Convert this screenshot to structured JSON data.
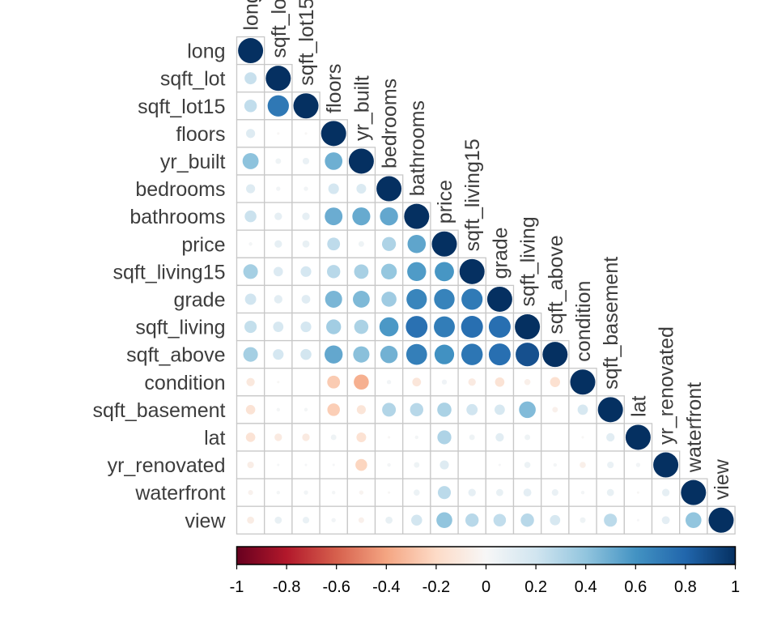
{
  "chart_data": {
    "type": "heatmap",
    "variables": [
      "long",
      "sqft_lot",
      "sqft_lot15",
      "floors",
      "yr_built",
      "bedrooms",
      "bathrooms",
      "price",
      "sqft_living15",
      "grade",
      "sqft_living",
      "sqft_above",
      "condition",
      "sqft_basement",
      "lat",
      "yr_renovated",
      "waterfront",
      "view"
    ],
    "lower_triangle_correlations": [
      [
        1.0
      ],
      [
        0.23,
        1.0
      ],
      [
        0.25,
        0.72,
        1.0
      ],
      [
        0.13,
        -0.01,
        -0.01,
        1.0
      ],
      [
        0.41,
        0.05,
        0.07,
        0.49,
        1.0
      ],
      [
        0.13,
        0.03,
        0.03,
        0.18,
        0.15,
        1.0
      ],
      [
        0.22,
        0.09,
        0.09,
        0.5,
        0.51,
        0.52,
        1.0
      ],
      [
        0.02,
        0.09,
        0.08,
        0.26,
        0.05,
        0.31,
        0.53,
        1.0
      ],
      [
        0.34,
        0.14,
        0.18,
        0.28,
        0.33,
        0.39,
        0.57,
        0.59,
        1.0
      ],
      [
        0.2,
        0.11,
        0.12,
        0.46,
        0.45,
        0.36,
        0.66,
        0.67,
        0.71,
        1.0
      ],
      [
        0.24,
        0.17,
        0.18,
        0.35,
        0.32,
        0.58,
        0.75,
        0.7,
        0.76,
        0.76,
        1.0
      ],
      [
        0.34,
        0.18,
        0.19,
        0.52,
        0.42,
        0.48,
        0.69,
        0.61,
        0.73,
        0.76,
        0.88,
        1.0
      ],
      [
        -0.11,
        -0.01,
        -0.0,
        -0.26,
        -0.36,
        0.03,
        -0.12,
        0.04,
        -0.09,
        -0.14,
        -0.06,
        -0.16,
        1.0
      ],
      [
        -0.14,
        0.02,
        0.02,
        -0.25,
        -0.13,
        0.3,
        0.28,
        0.32,
        0.2,
        0.17,
        0.44,
        -0.05,
        0.17,
        1.0
      ],
      [
        -0.14,
        -0.09,
        -0.09,
        0.05,
        -0.15,
        -0.01,
        0.02,
        0.31,
        0.05,
        0.11,
        0.05,
        0.0,
        -0.01,
        0.11,
        1.0
      ],
      [
        -0.07,
        0.01,
        0.01,
        0.01,
        -0.22,
        0.02,
        0.05,
        0.13,
        0.0,
        0.01,
        0.06,
        0.02,
        -0.06,
        0.07,
        0.03,
        1.0
      ],
      [
        -0.04,
        0.02,
        0.03,
        0.02,
        -0.03,
        -0.01,
        0.06,
        0.27,
        0.09,
        0.08,
        0.1,
        0.07,
        0.02,
        0.08,
        -0.01,
        0.09,
        1.0
      ],
      [
        -0.08,
        0.08,
        0.07,
        0.03,
        -0.05,
        0.08,
        0.19,
        0.4,
        0.28,
        0.25,
        0.28,
        0.17,
        0.05,
        0.27,
        0.01,
        0.1,
        0.4,
        1.0
      ]
    ],
    "colorbar": {
      "ticks": [
        "-1",
        "-0.8",
        "-0.6",
        "-0.4",
        "-0.2",
        "0",
        "0.2",
        "0.4",
        "0.6",
        "0.8",
        "1"
      ],
      "range": [
        -1,
        1
      ]
    },
    "colors": {
      "strong_negative": "#67001F",
      "neutral": "#F7F7F7",
      "strong_positive": "#053061",
      "grid": "#C8C8C8",
      "label": "#3D3D3D"
    },
    "legend_placement": "bottom",
    "grid": true
  }
}
